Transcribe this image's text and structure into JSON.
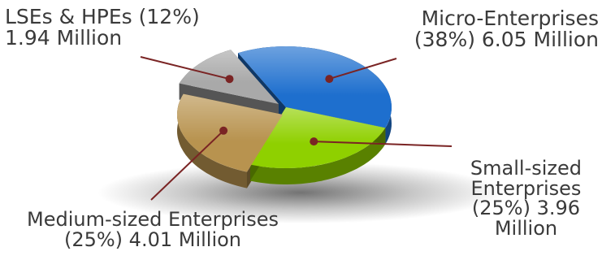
{
  "chart_data": {
    "type": "pie",
    "categories": [
      "Micro-Enterprises",
      "Small-sized Enterprises",
      "Medium-sized Enterprises",
      "LSEs & HPEs"
    ],
    "values": [
      38,
      25,
      25,
      12
    ],
    "value_labels": [
      "6.05 Million",
      "3.96 Million",
      "4.01 Million",
      "1.94 Million"
    ],
    "colors": [
      "#1e6fce",
      "#8fd000",
      "#b8934f",
      "#a9a9a9"
    ],
    "leader_color": "#7a2424",
    "three_d": true,
    "exploded": [
      "Medium-sized Enterprises",
      "LSEs & HPEs"
    ]
  },
  "labels": {
    "lses": [
      "LSEs & HPEs (12%)",
      "1.94 Million"
    ],
    "micro": [
      "Micro-Enterprises",
      "(38%)   6.05 Million"
    ],
    "small": [
      "Small-sized",
      "Enterprises",
      "(25%)   3.96",
      "Million"
    ],
    "medium": [
      "Medium-sized Enterprises",
      "(25%)   4.01 Million"
    ]
  }
}
